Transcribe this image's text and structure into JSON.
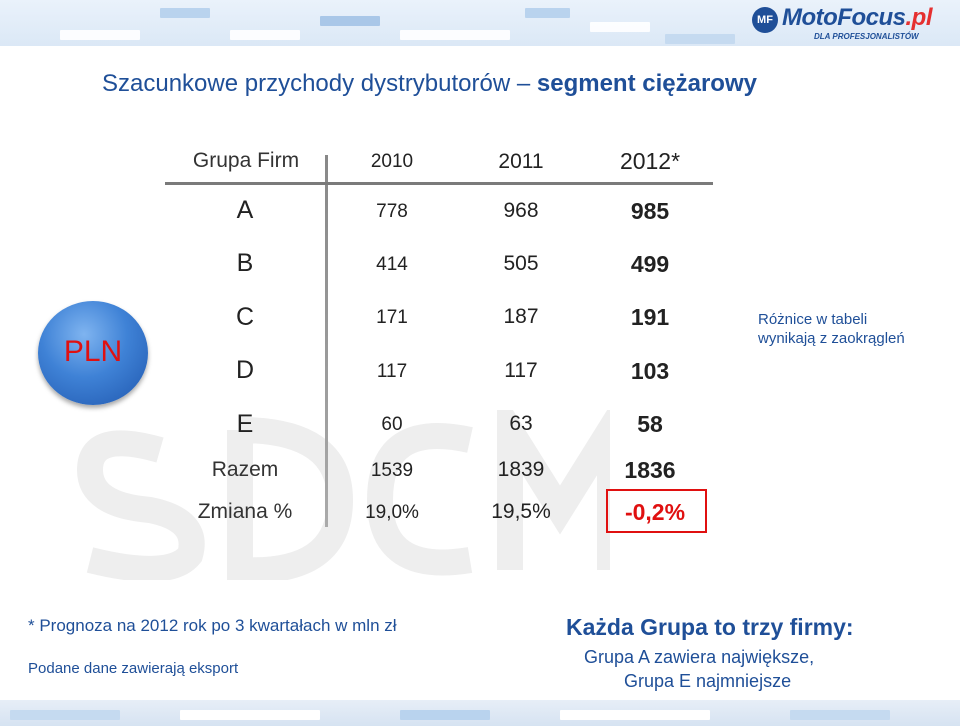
{
  "brand": {
    "name": "MotoFocus",
    "tld": ".pl",
    "tagline": "DLA PROFESJONALISTÓW",
    "accent": "#1f4f98",
    "highlight": "#e01010"
  },
  "title": {
    "normal": "Szacunkowe przychody dystrybutorów –",
    "bold": "segment ciężarowy"
  },
  "currency_badge": "PLN",
  "table": {
    "headers": [
      "Grupa Firm",
      "2010",
      "2011",
      "2012*"
    ],
    "rows": [
      {
        "label": "A",
        "v2010": "778",
        "v2011": "968",
        "v2012": "985"
      },
      {
        "label": "B",
        "v2010": "414",
        "v2011": "505",
        "v2012": "499"
      },
      {
        "label": "C",
        "v2010": "171",
        "v2011": "187",
        "v2012": "191"
      },
      {
        "label": "D",
        "v2010": "117",
        "v2011": "117",
        "v2012": "103"
      },
      {
        "label": "E",
        "v2010": "60",
        "v2011": "63",
        "v2012": "58"
      }
    ],
    "total": {
      "label": "Razem",
      "v2010": "1539",
      "v2011": "1839",
      "v2012": "1836"
    },
    "change": {
      "label": "Zmiana %",
      "v2010": "19,0%",
      "v2011": "19,5%",
      "v2012": "-0,2%"
    }
  },
  "note_right": [
    "Różnice w tabeli",
    "wynikają z zaokrągleń"
  ],
  "footer": {
    "forecast": "* Prognoza na 2012 rok po 3 kwartałach w mln zł",
    "export": "Podane dane zawierają eksport",
    "groups_title": "Każda Grupa to trzy firmy:",
    "groups_line1": "Grupa A zawiera największe,",
    "groups_line2": "Grupa E najmniejsze"
  }
}
